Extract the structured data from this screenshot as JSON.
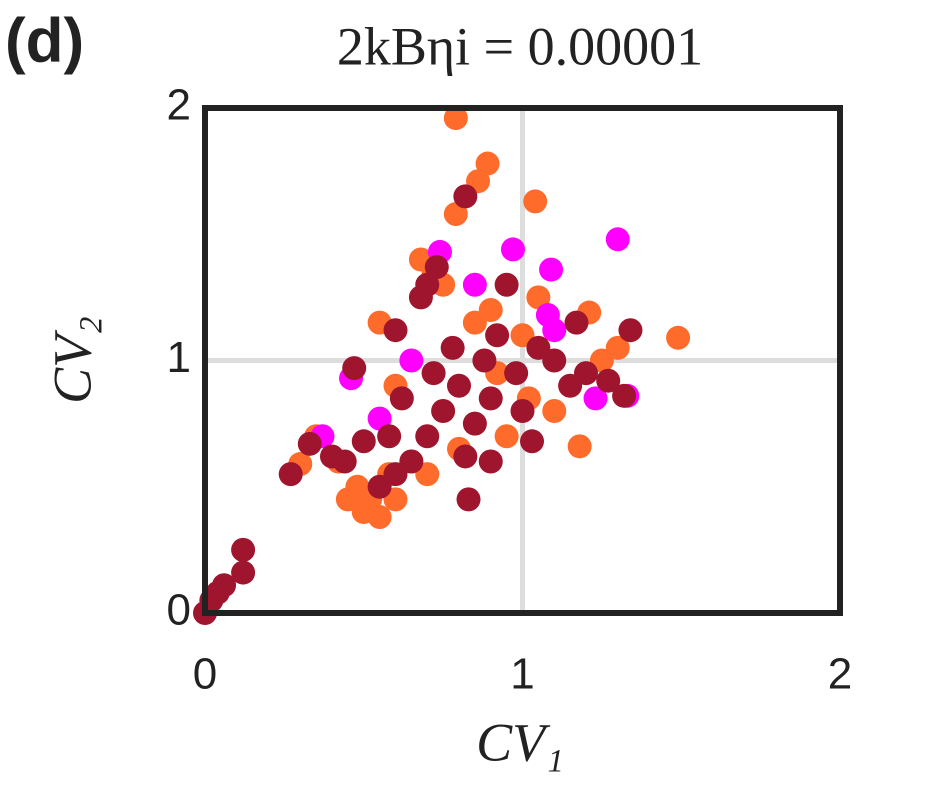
{
  "panel_label": "(d)",
  "chart_data": {
    "type": "scatter",
    "title": "2kBηi = 0.00001",
    "xlabel": "CV₁",
    "ylabel": "CV₂",
    "xlim": [
      0,
      2
    ],
    "ylim": [
      0,
      2
    ],
    "xticks": [
      0,
      1,
      2
    ],
    "yticks": [
      0,
      1,
      2
    ],
    "grid": true,
    "series": [
      {
        "color": "#ff6b2b",
        "x": [
          0.79,
          0.89,
          0.86,
          0.79,
          1.04,
          1.49,
          1.21,
          1.18,
          0.3,
          0.35,
          0.45,
          0.5,
          0.55,
          0.6,
          0.7,
          0.75,
          0.72,
          0.9,
          1.0,
          1.05,
          0.55,
          0.48,
          0.65,
          0.8,
          0.95,
          1.1,
          1.25,
          1.3,
          0.6,
          0.58,
          0.42,
          0.52,
          0.68,
          0.85,
          0.92,
          1.02
        ],
        "y": [
          1.96,
          1.78,
          1.71,
          1.58,
          1.63,
          1.09,
          1.19,
          0.66,
          0.59,
          0.7,
          0.45,
          0.4,
          0.38,
          0.45,
          0.55,
          1.3,
          1.35,
          1.2,
          1.1,
          1.25,
          1.15,
          0.5,
          0.6,
          0.65,
          0.7,
          0.8,
          1.0,
          1.05,
          0.9,
          0.55,
          0.6,
          0.45,
          1.4,
          1.15,
          0.95,
          0.85
        ]
      },
      {
        "color": "#ff00ff",
        "x": [
          0.97,
          1.3,
          0.74,
          1.09,
          0.55,
          0.46,
          0.37,
          1.23,
          1.33,
          0.85,
          1.08,
          1.1,
          0.65
        ],
        "y": [
          1.44,
          1.48,
          1.43,
          1.36,
          0.77,
          0.93,
          0.7,
          0.85,
          0.86,
          1.3,
          1.18,
          1.12,
          1.0
        ]
      },
      {
        "color": "#a0152e",
        "x": [
          0,
          0.02,
          0.04,
          0.06,
          0.12,
          0.12,
          0.27,
          0.33,
          0.4,
          0.44,
          0.5,
          0.47,
          0.82,
          0.7,
          0.73,
          0.68,
          0.6,
          0.83,
          0.9,
          1.03,
          1.17,
          1.34,
          1.32,
          1.27,
          1.1,
          0.95,
          0.75,
          0.8,
          0.85,
          0.9,
          0.7,
          0.65,
          0.6,
          0.55,
          0.62,
          0.88,
          0.98,
          1.0,
          0.92,
          0.78,
          0.72,
          1.05,
          1.15,
          0.58,
          0.82,
          1.2
        ],
        "y": [
          0,
          0.05,
          0.08,
          0.11,
          0.16,
          0.25,
          0.55,
          0.67,
          0.62,
          0.6,
          0.68,
          0.97,
          1.65,
          1.3,
          1.37,
          1.25,
          1.12,
          0.45,
          0.6,
          0.68,
          1.15,
          1.12,
          0.86,
          0.92,
          1.0,
          1.3,
          0.8,
          0.9,
          0.75,
          0.85,
          0.7,
          0.6,
          0.55,
          0.5,
          0.85,
          1.0,
          0.95,
          0.8,
          1.1,
          1.05,
          0.95,
          1.05,
          0.9,
          0.7,
          0.62,
          0.95
        ]
      }
    ]
  }
}
